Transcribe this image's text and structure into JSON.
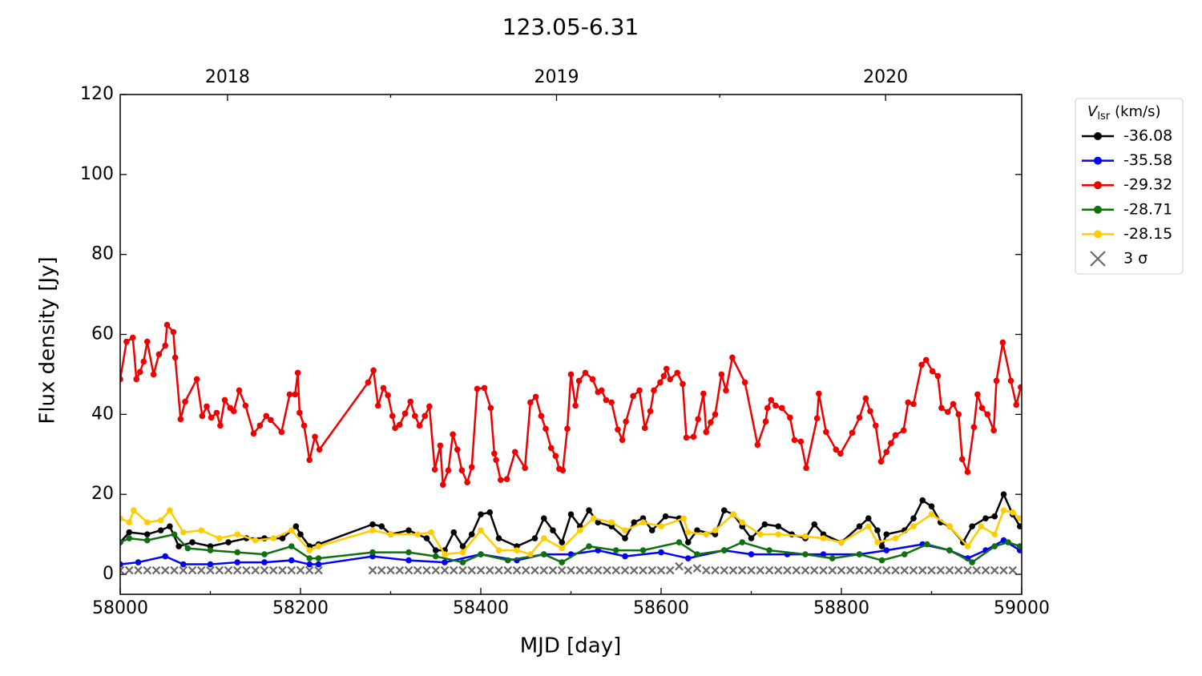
{
  "chart_data": {
    "type": "line",
    "title": "123.05-6.31",
    "xlabel": "MJD [day]",
    "ylabel": "Flux density [Jy]",
    "xlim": [
      58000,
      59000
    ],
    "ylim": [
      -5,
      120
    ],
    "xticks": [
      58000,
      58200,
      58400,
      58600,
      58800,
      59000
    ],
    "xminorticks": [
      58100,
      58300,
      58500,
      58700,
      58900
    ],
    "yticks": [
      0,
      20,
      40,
      60,
      80,
      100,
      120
    ],
    "x2ticks": [
      {
        "value": 58119,
        "label": "2018"
      },
      {
        "value": 58484,
        "label": "2019"
      },
      {
        "value": 58849,
        "label": "2020"
      }
    ],
    "x2minorticks": [
      58300,
      58665
    ],
    "legend_title": {
      "symbol": "V",
      "subscript": "lsr",
      "unit": "(km/s)"
    },
    "legend_position": "outside-right",
    "series": [
      {
        "name": "-36.08",
        "color": "#000000",
        "marker": "o",
        "x": [
          58000,
          58010,
          58030,
          58045,
          58055,
          58065,
          58080,
          58100,
          58120,
          58140,
          58160,
          58180,
          58195,
          58200,
          58210,
          58220,
          58280,
          58290,
          58300,
          58320,
          58340,
          58350,
          58360,
          58370,
          58380,
          58390,
          58400,
          58410,
          58420,
          58440,
          58460,
          58470,
          58480,
          58490,
          58500,
          58510,
          58520,
          58530,
          58545,
          58560,
          58570,
          58580,
          58590,
          58605,
          58620,
          58630,
          58640,
          58660,
          58670,
          58680,
          58690,
          58700,
          58715,
          58730,
          58745,
          58760,
          58770,
          58780,
          58800,
          58820,
          58830,
          58840,
          58845,
          58850,
          58870,
          58880,
          58890,
          58900,
          58910,
          58920,
          58935,
          58945,
          58960,
          58970,
          58980,
          58990,
          58998
        ],
        "values": [
          8,
          10.5,
          10,
          11,
          12,
          7,
          8,
          7,
          8,
          9,
          9,
          9,
          12,
          10,
          7,
          7.5,
          12.5,
          12,
          10,
          11,
          9,
          6,
          6,
          10.5,
          7,
          10,
          15,
          15.5,
          9,
          7,
          9,
          14,
          11,
          8,
          15,
          12,
          16,
          13,
          12,
          9,
          13,
          14,
          11,
          14.5,
          14,
          8,
          11,
          10,
          16,
          15,
          12,
          9,
          12.5,
          12,
          10,
          9,
          12.5,
          10,
          8,
          12,
          14,
          11,
          7,
          10,
          11,
          14,
          18.5,
          17,
          13,
          12,
          8,
          12,
          14,
          14.5,
          20,
          15,
          12
        ]
      },
      {
        "name": "-35.58",
        "color": "#0000ff",
        "marker": "o",
        "x": [
          58000,
          58020,
          58050,
          58070,
          58100,
          58130,
          58160,
          58190,
          58210,
          58220,
          58280,
          58320,
          58360,
          58400,
          58440,
          58470,
          58500,
          58530,
          58560,
          58600,
          58630,
          58670,
          58700,
          58740,
          58780,
          58820,
          58850,
          58890,
          58920,
          58940,
          58960,
          58980,
          58998
        ],
        "values": [
          2.5,
          3,
          4.5,
          2.5,
          2.5,
          3,
          3,
          3.5,
          2.5,
          2.5,
          4.5,
          3.5,
          3,
          5,
          3.5,
          5,
          5,
          6,
          4.5,
          5.5,
          4,
          6,
          5,
          5,
          5,
          5,
          6,
          7.5,
          6,
          4,
          6,
          8.5,
          6
        ]
      },
      {
        "name": "-29.32",
        "color": "#ee0000",
        "marker": "o",
        "x": [
          58000,
          58007,
          58014,
          58018,
          58022,
          58026,
          58030,
          58037,
          58043,
          58050,
          58052,
          58059,
          58061,
          58067,
          58072,
          58085,
          58091,
          58096,
          58101,
          58107,
          58111,
          58116,
          58122,
          58126,
          58132,
          58139,
          58148,
          58155,
          58162,
          58167,
          58179,
          58188,
          58194,
          58197,
          58199,
          58204,
          58210,
          58216,
          58221,
          58275,
          58281,
          58286,
          58292,
          58297,
          58302,
          58305,
          58310,
          58316,
          58322,
          58327,
          58332,
          58338,
          58343,
          58349,
          58355,
          58358,
          58364,
          58369,
          58374,
          58379,
          58385,
          58390,
          58396,
          58404,
          58411,
          58415,
          58417,
          58422,
          58429,
          58438,
          58449,
          58455,
          58461,
          58467,
          58472,
          58478,
          58483,
          58487,
          58491,
          58496,
          58500,
          58505,
          58509,
          58516,
          58524,
          58530,
          58534,
          58539,
          58545,
          58552,
          58557,
          58561,
          58569,
          58576,
          58582,
          58588,
          58592,
          58599,
          58603,
          58606,
          58610,
          58618,
          58624,
          58628,
          58636,
          58641,
          58647,
          58650,
          58655,
          58660,
          58667,
          58672,
          58679,
          58693,
          58707,
          58716,
          58718,
          58722,
          58727,
          58734,
          58743,
          58748,
          58755,
          58761,
          58773,
          58775,
          58783,
          58794,
          58799,
          58812,
          58820,
          58827,
          58832,
          58838,
          58844,
          58850,
          58855,
          58860,
          58869,
          58874,
          58880,
          58889,
          58894,
          58901,
          58907,
          58911,
          58918,
          58924,
          58930,
          58934,
          58940,
          58947,
          58951,
          58956,
          58962,
          58969,
          58972,
          58979,
          58988,
          58994,
          58999
        ],
        "values": [
          48.8,
          58.2,
          59.2,
          48.8,
          50.6,
          53.2,
          58.2,
          50,
          55,
          57.2,
          62.4,
          60.6,
          54.2,
          38.8,
          43.2,
          48.8,
          39.6,
          42,
          39.2,
          40.4,
          37.2,
          43.6,
          41.6,
          40.8,
          46,
          42.2,
          35.2,
          37.2,
          39.6,
          38.6,
          35.6,
          45,
          45,
          50.4,
          40.4,
          37.2,
          28.6,
          34.4,
          31.2,
          48,
          51,
          42.2,
          46.6,
          44.8,
          39.6,
          36.6,
          37.4,
          40.2,
          43.2,
          39.6,
          37.2,
          39.6,
          42,
          26.2,
          32.2,
          22.4,
          26,
          35,
          31.2,
          26,
          23,
          26.8,
          46.4,
          46.6,
          41.6,
          30.2,
          28.6,
          23.6,
          23.8,
          30.6,
          26.6,
          43,
          44.4,
          39.6,
          36.4,
          31.6,
          29.6,
          26.4,
          26,
          36.4,
          50,
          42.2,
          48.4,
          50.4,
          48.8,
          45.6,
          46,
          43.6,
          43,
          36.2,
          33.6,
          38.2,
          44.6,
          46,
          36.6,
          40.8,
          46,
          48,
          49.6,
          51.4,
          48.8,
          50.4,
          47.6,
          34.2,
          34.4,
          38.8,
          45.2,
          35.6,
          38,
          40,
          50,
          46,
          54.2,
          48,
          32.4,
          38.2,
          41.6,
          43.6,
          42.2,
          41.6,
          39.2,
          33.6,
          33.2,
          26.6,
          39,
          45.2,
          35.6,
          31.2,
          30.2,
          35.4,
          39.2,
          44,
          40.8,
          37.2,
          28.2,
          30.6,
          32.8,
          34.8,
          36,
          43,
          42.6,
          52.4,
          53.6,
          50.8,
          49.6,
          41.6,
          40.6,
          42.6,
          40,
          28.8,
          25.6,
          36.8,
          45,
          41.6,
          40,
          36,
          48.4,
          58,
          48.4,
          42.4,
          46.8
        ]
      },
      {
        "name": "-28.71",
        "color": "#107010",
        "marker": "o",
        "x": [
          58000,
          58010,
          58030,
          58060,
          58075,
          58100,
          58130,
          58160,
          58190,
          58210,
          58220,
          58280,
          58320,
          58350,
          58380,
          58400,
          58430,
          58470,
          58490,
          58520,
          58550,
          58580,
          58620,
          58640,
          58670,
          58690,
          58720,
          58760,
          58790,
          58820,
          58845,
          58870,
          58895,
          58920,
          58945,
          58970,
          58985,
          58998
        ],
        "values": [
          8,
          9,
          8.5,
          10,
          6.5,
          6,
          5.5,
          5,
          7,
          4,
          4,
          5.5,
          5.5,
          4.5,
          3,
          5,
          3.5,
          5,
          3,
          7,
          6,
          6,
          8,
          5,
          6,
          8,
          6,
          5,
          4,
          5,
          3.5,
          5,
          7.5,
          6,
          3,
          7,
          8,
          7
        ]
      },
      {
        "name": "-28.15",
        "color": "#ffcc00",
        "marker": "o",
        "x": [
          58000,
          58010,
          58015,
          58030,
          58045,
          58055,
          58070,
          58090,
          58110,
          58130,
          58150,
          58170,
          58190,
          58210,
          58220,
          58280,
          58300,
          58330,
          58345,
          58360,
          58380,
          58400,
          58420,
          58440,
          58455,
          58470,
          58490,
          58510,
          58525,
          58545,
          58560,
          58580,
          58600,
          58625,
          58630,
          58650,
          58660,
          58680,
          58690,
          58710,
          58730,
          58760,
          58780,
          58800,
          58830,
          58840,
          58860,
          58880,
          58900,
          58920,
          58940,
          58955,
          58970,
          58980,
          58990,
          58998
        ],
        "values": [
          14,
          13,
          16,
          13,
          13.5,
          16,
          10.5,
          11,
          9,
          10,
          8.5,
          9,
          11,
          6,
          7,
          11,
          10,
          10,
          10.5,
          5,
          5.5,
          11,
          6,
          6,
          5,
          9,
          6.5,
          11,
          14,
          13,
          11,
          13,
          12,
          14,
          10.5,
          10,
          11,
          15,
          13,
          10,
          10,
          9.5,
          9,
          8,
          12,
          8,
          9,
          12,
          15,
          12,
          7,
          12,
          10,
          16,
          15.5,
          14
        ]
      },
      {
        "name": "3 σ",
        "color": "#6b6b6b",
        "marker": "x",
        "type": "scatter",
        "x": [
          58000,
          58010,
          58020,
          58030,
          58040,
          58050,
          58060,
          58070,
          58080,
          58090,
          58100,
          58110,
          58120,
          58130,
          58140,
          58150,
          58160,
          58170,
          58180,
          58190,
          58200,
          58210,
          58220,
          58280,
          58290,
          58300,
          58310,
          58320,
          58330,
          58340,
          58350,
          58360,
          58370,
          58380,
          58390,
          58400,
          58410,
          58420,
          58430,
          58440,
          58450,
          58460,
          58470,
          58480,
          58490,
          58500,
          58510,
          58520,
          58530,
          58540,
          58550,
          58560,
          58570,
          58580,
          58590,
          58600,
          58610,
          58620,
          58630,
          58640,
          58650,
          58660,
          58670,
          58680,
          58690,
          58700,
          58710,
          58720,
          58730,
          58740,
          58750,
          58760,
          58770,
          58780,
          58790,
          58800,
          58810,
          58820,
          58830,
          58840,
          58850,
          58860,
          58870,
          58880,
          58890,
          58900,
          58910,
          58920,
          58930,
          58940,
          58950,
          58960,
          58970,
          58980,
          58990
        ],
        "values": [
          1,
          1,
          1,
          1,
          1,
          1,
          1,
          1,
          1,
          1,
          1,
          1,
          1,
          1,
          1,
          1,
          1,
          1,
          1,
          1,
          1,
          1,
          1,
          1,
          1,
          1,
          1,
          1,
          1,
          1,
          1,
          1,
          1,
          1,
          1,
          1,
          1,
          1,
          1,
          1,
          1,
          1,
          1,
          1,
          1,
          1,
          1,
          1,
          1,
          1,
          1,
          1,
          1,
          1,
          1,
          1,
          1,
          2,
          1,
          1.5,
          1,
          1,
          1,
          1,
          1,
          1,
          1,
          1,
          1,
          1,
          1,
          1,
          1,
          1,
          1,
          1,
          1,
          1,
          1,
          1,
          1,
          1,
          1,
          1,
          1,
          1,
          1,
          1,
          1,
          1,
          1,
          1,
          1,
          1,
          1
        ]
      }
    ]
  }
}
